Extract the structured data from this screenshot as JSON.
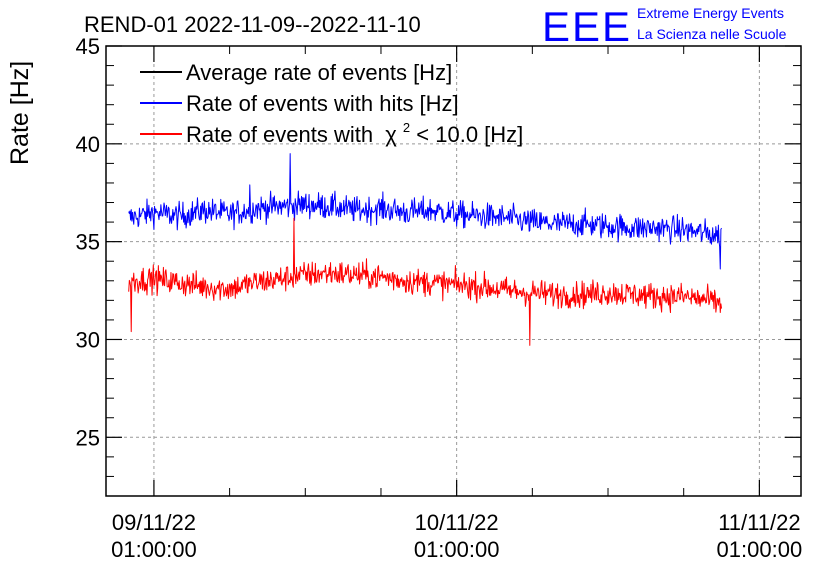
{
  "chart_data": {
    "type": "line",
    "title": "REND-01 2022-11-09--2022-11-10",
    "ylabel": "Rate [Hz]",
    "xlabel": "",
    "ylim": [
      22,
      45
    ],
    "y_ticks": [
      25,
      30,
      35,
      40,
      45
    ],
    "x_range_hours": [
      -3.8,
      51.3
    ],
    "x_ticks": [
      {
        "hour": 0,
        "date": "09/11/22",
        "time": "01:00:00"
      },
      {
        "hour": 24,
        "date": "10/11/22",
        "time": "01:00:00"
      },
      {
        "hour": 48,
        "date": "11/11/22",
        "time": "01:00:00"
      }
    ],
    "grid": true,
    "legend": [
      {
        "label_main": "Average rate of events [Hz]",
        "color": "#000000"
      },
      {
        "label_main": "Rate of events with hits [Hz]",
        "color": "#0000ff"
      },
      {
        "label_main": "Rate of events with",
        "chi": "χ",
        "sup": "2",
        "label_tail": " < 10.0 [Hz]",
        "color": "#ff0000"
      }
    ],
    "series": [
      {
        "name": "Rate of events with hits [Hz]",
        "color": "#0000ff",
        "x_hours": [
          -2,
          0,
          2,
          4,
          6,
          8,
          10,
          12,
          14,
          16,
          18,
          20,
          22,
          24,
          26,
          28,
          30,
          32,
          34,
          36,
          38,
          40,
          42,
          44,
          45
        ],
        "values": [
          36.2,
          36.5,
          36.3,
          36.6,
          36.4,
          36.7,
          36.8,
          36.9,
          36.8,
          36.6,
          36.7,
          36.5,
          36.6,
          36.4,
          36.3,
          36.2,
          36.0,
          35.9,
          35.9,
          35.8,
          35.7,
          35.7,
          35.6,
          35.4,
          35.3
        ],
        "noise": 0.8,
        "spikes": [
          {
            "x": 10.8,
            "v": 39.5
          },
          {
            "x": 7.6,
            "v": 37.9
          },
          {
            "x": 44.9,
            "v": 33.6
          }
        ]
      },
      {
        "name": "Rate of events with χ2 < 10.0 [Hz]",
        "color": "#ff0000",
        "x_hours": [
          -2,
          0,
          2,
          4,
          6,
          8,
          10,
          12,
          14,
          16,
          18,
          20,
          22,
          24,
          26,
          28,
          30,
          32,
          34,
          36,
          38,
          40,
          42,
          44,
          45
        ],
        "values": [
          33.0,
          33.1,
          32.9,
          32.7,
          32.6,
          32.9,
          33.1,
          33.3,
          33.4,
          33.3,
          33.2,
          33.0,
          32.9,
          32.8,
          32.7,
          32.5,
          32.4,
          32.3,
          32.3,
          32.4,
          32.3,
          32.2,
          32.2,
          32.0,
          31.8
        ],
        "noise": 0.8,
        "spikes": [
          {
            "x": 11.1,
            "v": 36.2
          },
          {
            "x": -1.8,
            "v": 30.4
          },
          {
            "x": 29.8,
            "v": 29.7
          }
        ]
      }
    ]
  },
  "logo": {
    "mark": "EEE",
    "line1": "Extreme Energy Events",
    "line2": "La Scienza nelle Scuole",
    "color": "#0000ff"
  }
}
